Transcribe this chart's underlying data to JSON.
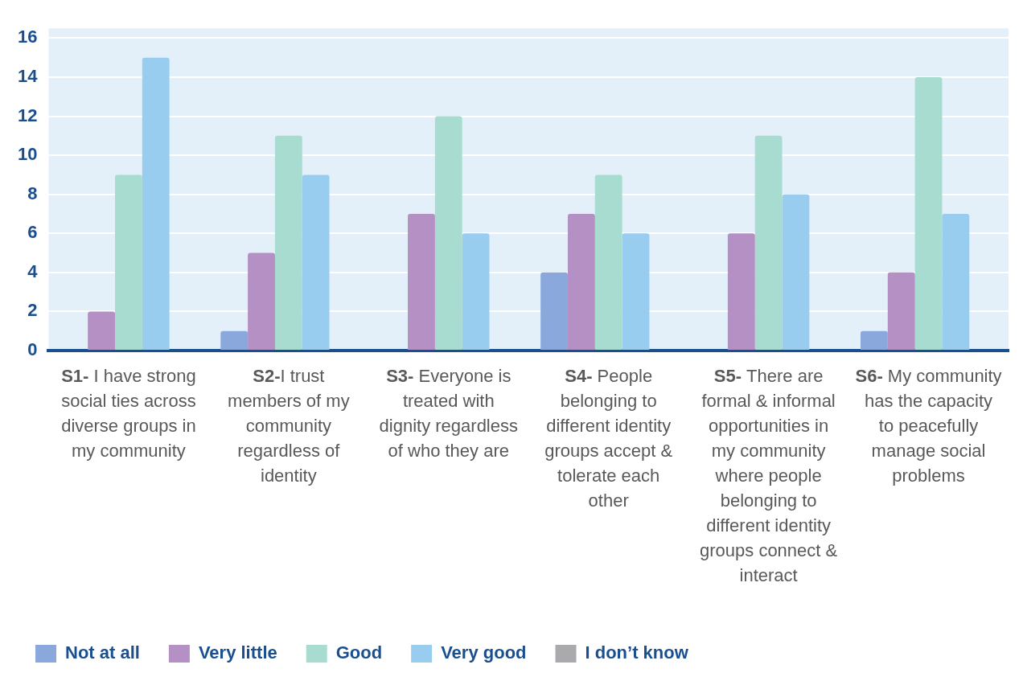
{
  "chart_data": {
    "type": "bar",
    "categories": [
      "S1- I have strong social ties across diverse groups in my community",
      "S2-I trust members of my community regardless of identity",
      "S3- Everyone is treated with dignity regardless of who they are",
      "S4- People belonging to different identity groups accept & tolerate each other",
      "S5- There are formal & informal opportunities in my community where people belonging to different identity groups connect & interact",
      "S6- My community has the capacity to peacefully manage social problems"
    ],
    "series": [
      {
        "name": "Not at all",
        "color": "#8aa8dc",
        "values": [
          0,
          1,
          0,
          4,
          0,
          1
        ]
      },
      {
        "name": "Very little",
        "color": "#b490c4",
        "values": [
          2,
          5,
          7,
          7,
          6,
          4
        ]
      },
      {
        "name": "Good",
        "color": "#a8dcd1",
        "values": [
          9,
          11,
          12,
          9,
          11,
          14
        ]
      },
      {
        "name": "Very good",
        "color": "#99cdef",
        "values": [
          15,
          9,
          6,
          6,
          8,
          7
        ]
      },
      {
        "name": "I don’t know",
        "color": "#aaaaae",
        "values": [
          0,
          0,
          0,
          0,
          0,
          0
        ]
      }
    ],
    "ylim": [
      0,
      16.5
    ],
    "yticks": [
      0,
      2,
      4,
      6,
      8,
      10,
      12,
      14,
      16
    ],
    "grid": "y",
    "legend": "bottom"
  }
}
